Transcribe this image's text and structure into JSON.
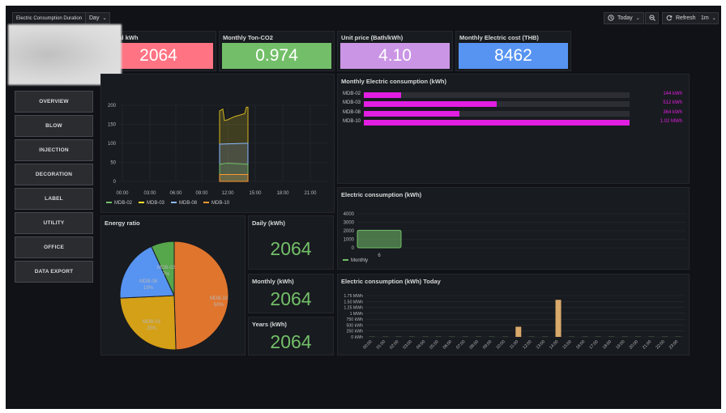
{
  "header": {
    "duration_label": "Electric Consumption Duration",
    "duration_value": "Day",
    "time_range": "Today",
    "refresh_label": "Refresh",
    "refresh_interval": "1m"
  },
  "stats": [
    {
      "title": "y Total kWh",
      "value": "2064",
      "color": "#ff7383"
    },
    {
      "title": "Monthly Ton-CO2",
      "value": "0.974",
      "color": "#73bf69"
    },
    {
      "title": "Unit price (Bath/kWh)",
      "value": "4.10",
      "color": "#ca95e5"
    },
    {
      "title": "Monthly Electric cost (THB)",
      "value": "8462",
      "color": "#5794f2"
    }
  ],
  "sidebar": {
    "items": [
      {
        "label": "OVERVIEW"
      },
      {
        "label": "BLOW"
      },
      {
        "label": "INJECTION"
      },
      {
        "label": "DECORATION"
      },
      {
        "label": "LABEL"
      },
      {
        "label": "UTILITY"
      },
      {
        "label": "OFFICE"
      },
      {
        "label": "DATA EXPORT"
      }
    ]
  },
  "timeseries": {
    "y_ticks": [
      "200",
      "150",
      "100",
      "50",
      "0"
    ],
    "x_ticks": [
      "00:00",
      "03:00",
      "06:00",
      "09:00",
      "12:00",
      "15:00",
      "18:00",
      "21:00"
    ],
    "legend": [
      {
        "name": "MDB-02",
        "color": "#73bf69"
      },
      {
        "name": "MDB-03",
        "color": "#fade2a"
      },
      {
        "name": "MDB-08",
        "color": "#8ab8ff"
      },
      {
        "name": "MDB-10",
        "color": "#ff9830"
      }
    ]
  },
  "bargauge": {
    "title": "Monthly Electric consumption (kWh)",
    "rows": [
      {
        "name": "MDB-02",
        "value": "144 kWh",
        "fraction": 0.14
      },
      {
        "name": "MDB-03",
        "value": "512 kWh",
        "fraction": 0.5
      },
      {
        "name": "MDB-08",
        "value": "364 kWh",
        "fraction": 0.36
      },
      {
        "name": "MDB-10",
        "value": "1.02 MWh",
        "fraction": 1.0
      }
    ],
    "color": "#e11ee1"
  },
  "monthly_chart": {
    "title": "Electric consumption (kWh)",
    "y_ticks": [
      "4000",
      "3000",
      "2000",
      "1000",
      "0"
    ],
    "x_label": "6",
    "legend": "Monthly"
  },
  "pie": {
    "title": "Energy ratio",
    "slices": [
      {
        "label": "MDB-10",
        "pct": "50%",
        "value": 50,
        "color": "#e0752d"
      },
      {
        "label": "MDB-03",
        "pct": "25%",
        "value": 25,
        "color": "#d4a017"
      },
      {
        "label": "MDB-08",
        "pct": "19%",
        "value": 19,
        "color": "#5794f2"
      },
      {
        "label": "MDB-02",
        "pct": "7%",
        "value": 7,
        "color": "#56a64b"
      }
    ]
  },
  "gauges": [
    {
      "title": "Daily (kWh)",
      "value": "2064"
    },
    {
      "title": "Monthly (kWh)",
      "value": "2064"
    },
    {
      "title": "Years (kWh)",
      "value": "2064"
    }
  ],
  "today_chart": {
    "title": "Electric consumption (kWh) Today",
    "y_ticks": [
      "1.75 MWh",
      "1.50 MWh",
      "1.25 MWh",
      "1 MWh",
      "750 kWh",
      "500 kWh",
      "250 kWh",
      "0 kWh"
    ],
    "x_ticks": [
      "00:00",
      "01:00",
      "02:00",
      "03:00",
      "04:00",
      "05:00",
      "06:00",
      "07:00",
      "08:00",
      "09:00",
      "10:00",
      "11:00",
      "12:00",
      "13:00",
      "14:00",
      "15:00",
      "16:00",
      "17:00",
      "18:00",
      "19:00",
      "20:00",
      "21:00",
      "22:00",
      "23:00"
    ],
    "values_kwh": [
      0,
      0,
      0,
      0,
      0,
      0,
      0,
      0,
      0,
      0,
      0,
      430,
      0,
      0,
      1570,
      0,
      0,
      0,
      0,
      0,
      0,
      0,
      0,
      0
    ],
    "bar_color": "#d9a96b"
  }
}
